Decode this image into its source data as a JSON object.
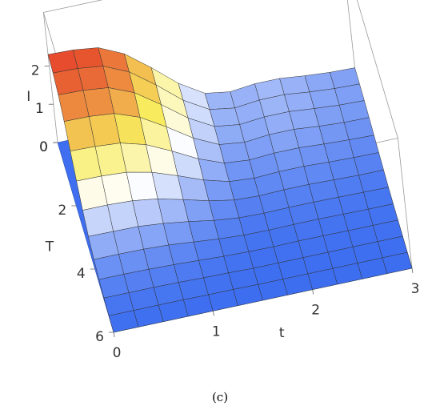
{
  "chart_data": {
    "type": "surface",
    "xlabel": "t",
    "ylabel": "T",
    "zlabel": "I",
    "x": [
      0,
      0.25,
      0.5,
      0.75,
      1,
      1.25,
      1.5,
      1.75,
      2,
      2.25,
      2.5,
      2.75,
      3
    ],
    "y": [
      0,
      0.5,
      1,
      1.5,
      2,
      2.5,
      3,
      3.5,
      4,
      4.5,
      5,
      5.5,
      6
    ],
    "z": [
      [
        2.3,
        2.28,
        2.2,
        1.9,
        1.4,
        0.85,
        0.45,
        0.35,
        0.42,
        0.42,
        0.35,
        0.3,
        0.28
      ],
      [
        2.23,
        2.21,
        2.13,
        1.84,
        1.36,
        0.82,
        0.44,
        0.34,
        0.41,
        0.41,
        0.34,
        0.29,
        0.27
      ],
      [
        2.07,
        2.05,
        1.98,
        1.71,
        1.26,
        0.77,
        0.41,
        0.32,
        0.38,
        0.38,
        0.32,
        0.27,
        0.25
      ],
      [
        1.79,
        1.78,
        1.72,
        1.48,
        1.09,
        0.66,
        0.35,
        0.27,
        0.33,
        0.33,
        0.27,
        0.23,
        0.22
      ],
      [
        1.43,
        1.41,
        1.36,
        1.18,
        0.87,
        0.53,
        0.28,
        0.22,
        0.26,
        0.26,
        0.22,
        0.19,
        0.17
      ],
      [
        1.06,
        1.05,
        1.01,
        0.87,
        0.64,
        0.39,
        0.21,
        0.16,
        0.19,
        0.19,
        0.16,
        0.14,
        0.13
      ],
      [
        0.71,
        0.71,
        0.68,
        0.59,
        0.43,
        0.26,
        0.14,
        0.11,
        0.13,
        0.13,
        0.11,
        0.09,
        0.09
      ],
      [
        0.44,
        0.43,
        0.42,
        0.36,
        0.27,
        0.16,
        0.09,
        0.07,
        0.08,
        0.08,
        0.07,
        0.06,
        0.05
      ],
      [
        0.25,
        0.25,
        0.24,
        0.21,
        0.15,
        0.09,
        0.05,
        0.04,
        0.05,
        0.05,
        0.04,
        0.03,
        0.03
      ],
      [
        0.14,
        0.14,
        0.13,
        0.11,
        0.08,
        0.05,
        0.03,
        0.02,
        0.03,
        0.03,
        0.02,
        0.02,
        0.02
      ],
      [
        0.07,
        0.07,
        0.07,
        0.06,
        0.04,
        0.03,
        0.01,
        0.01,
        0.01,
        0.01,
        0.01,
        0.01,
        0.01
      ],
      [
        0.02,
        0.02,
        0.02,
        0.02,
        0.01,
        0.01,
        0,
        0,
        0,
        0,
        0,
        0,
        0
      ],
      [
        0,
        0,
        0,
        0,
        0,
        0,
        0,
        0,
        0,
        0,
        0,
        0,
        0
      ]
    ],
    "xlim": [
      0,
      3
    ],
    "ylim": [
      0,
      6
    ],
    "zlim": [
      0,
      3.4
    ],
    "xticks": [
      0,
      1,
      2,
      3
    ],
    "yticks": [
      0,
      2,
      4,
      6
    ],
    "zticks": [
      0,
      1,
      2
    ],
    "floor_color": "#3f6ff0",
    "colorscale": [
      [
        0,
        "#3d6ef0"
      ],
      [
        0.35,
        "#ffffff"
      ],
      [
        0.6,
        "#f8ec5e"
      ],
      [
        1,
        "#e5442a"
      ]
    ]
  },
  "caption": "(c)"
}
